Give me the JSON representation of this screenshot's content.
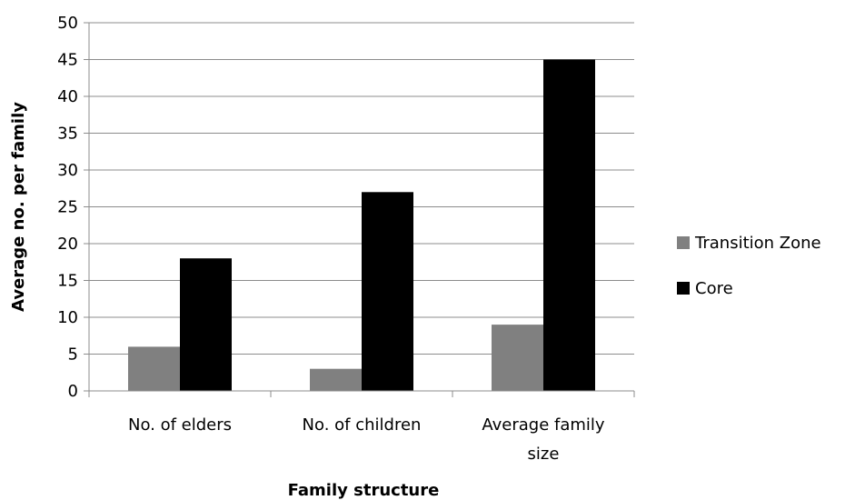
{
  "chart_data": {
    "type": "bar",
    "categories": [
      [
        "No. of elders"
      ],
      [
        "No. of children"
      ],
      [
        "Average family",
        "size"
      ]
    ],
    "series": [
      {
        "name": "Transition Zone",
        "values": [
          6,
          3,
          9
        ],
        "color": "#808080"
      },
      {
        "name": "Core",
        "values": [
          18,
          27,
          45
        ],
        "color": "#000000"
      }
    ],
    "xlabel": "Family structure",
    "ylabel": "Average no. per family",
    "ylim": [
      0,
      50
    ],
    "yticks": [
      0,
      5,
      10,
      15,
      20,
      25,
      30,
      35,
      40,
      45,
      50
    ],
    "grid": true,
    "legend": "right"
  }
}
